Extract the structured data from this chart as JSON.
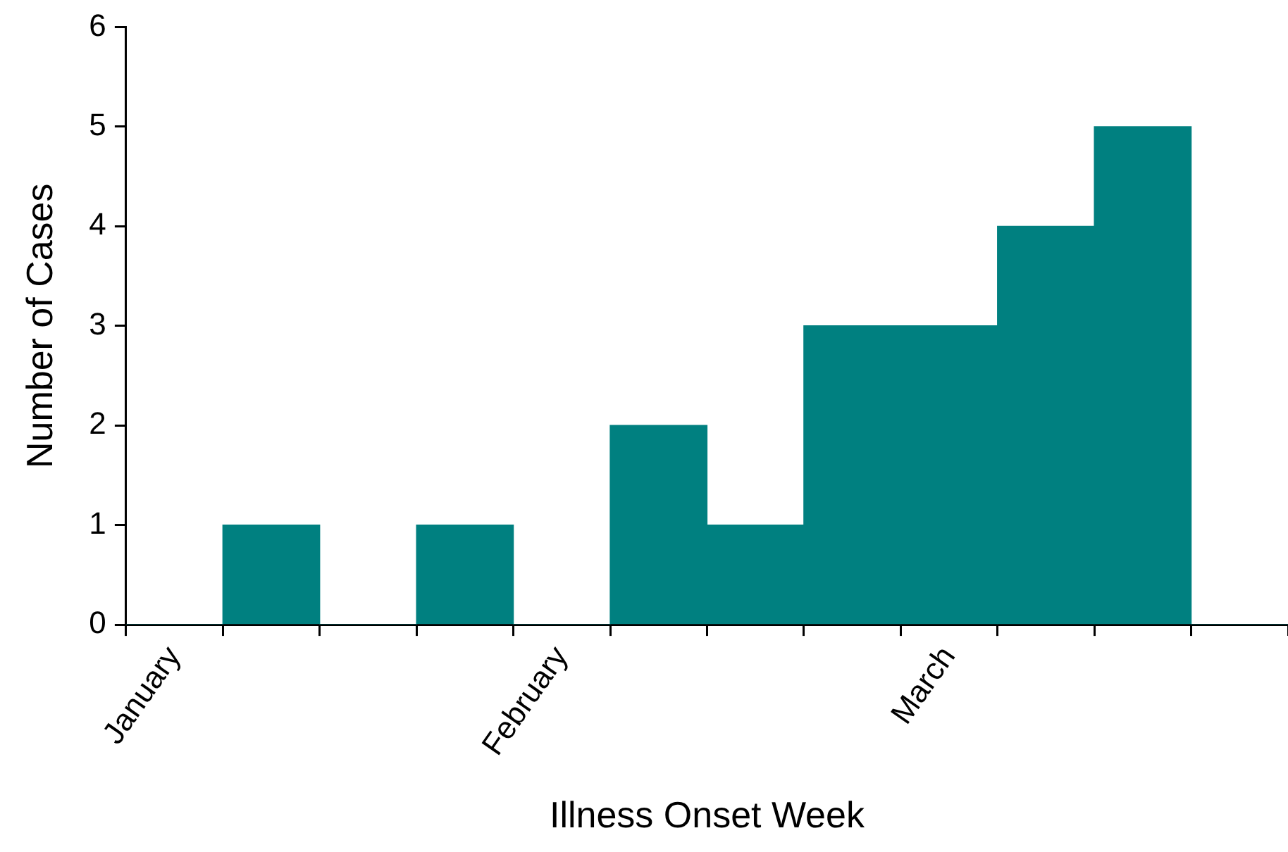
{
  "chart_data": {
    "type": "bar",
    "xlabel": "Illness Onset Week",
    "ylabel": "Number of Cases",
    "categories": [
      "January",
      null,
      null,
      null,
      "February",
      null,
      null,
      null,
      "March",
      null,
      null,
      null
    ],
    "values": [
      0,
      1,
      0,
      1,
      0,
      2,
      1,
      3,
      3,
      4,
      5,
      0
    ],
    "color": "#008080",
    "ylim": [
      0,
      6
    ],
    "yticks": [
      0,
      1,
      2,
      3,
      4,
      5,
      6
    ],
    "grid": false,
    "legend": false
  }
}
